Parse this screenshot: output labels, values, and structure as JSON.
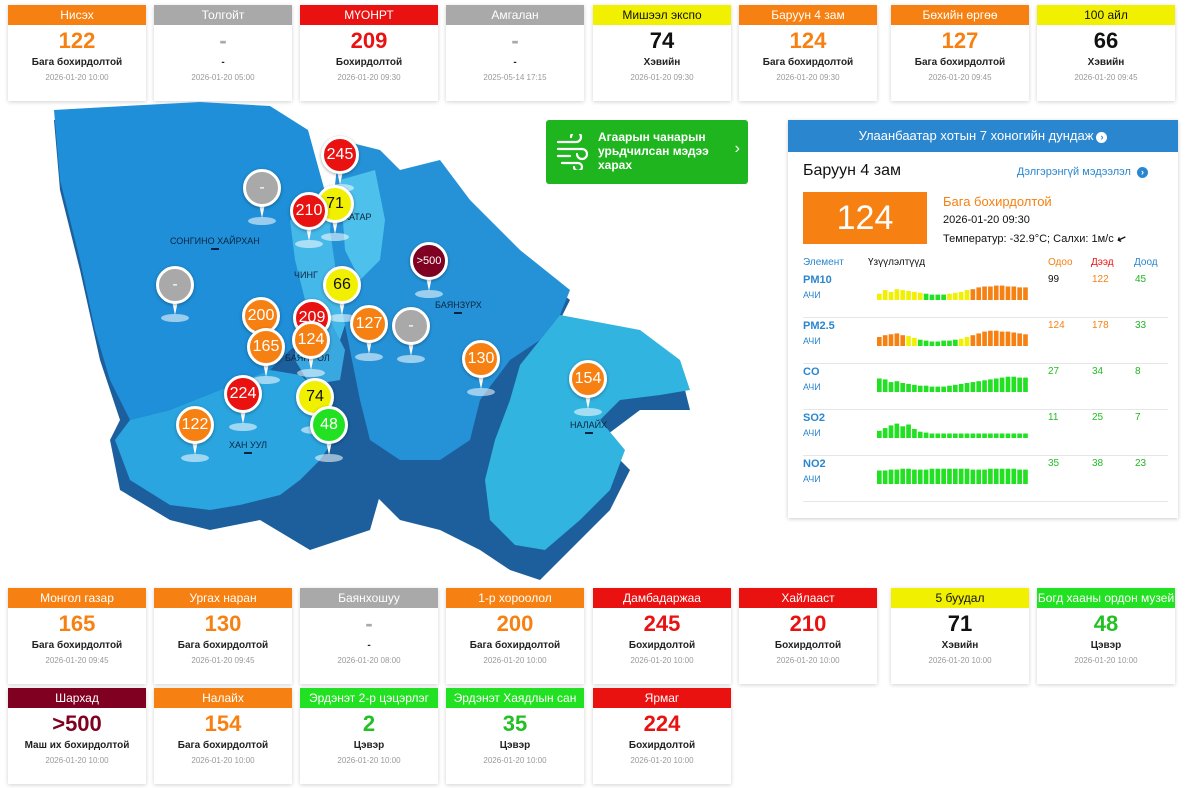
{
  "colors": {
    "good": "#22e022",
    "moderate": "#f0f000",
    "unhealthy_sensitive": "#f68112",
    "unhealthy": "#ea1111",
    "hazardous": "#7f0020",
    "nodata": "#a9a9a9",
    "accent": "#2a86cf",
    "forecast": "#1fb51f"
  },
  "top_stations": [
    {
      "name": "Нисэх",
      "value": "122",
      "level": "Бага бохирдолтой",
      "time": "2026-01-20 10:00",
      "color": "#f68112",
      "textColor": "#f68112"
    },
    {
      "name": "Толгойт",
      "value": "-",
      "level": "-",
      "time": "2026-01-20 05:00",
      "color": "#a9a9a9",
      "textColor": "#a9a9a9"
    },
    {
      "name": "МҮОНРТ",
      "value": "209",
      "level": "Бохирдолтой",
      "time": "2026-01-20 09:30",
      "color": "#ea1111",
      "textColor": "#ea1111"
    },
    {
      "name": "Амгалан",
      "value": "-",
      "level": "-",
      "time": "2025-05-14 17:15",
      "color": "#a9a9a9",
      "textColor": "#a9a9a9"
    },
    {
      "name": "Мишээл экспо",
      "value": "74",
      "level": "Хэвийн",
      "time": "2026-01-20 09:30",
      "color": "#f0f000",
      "textColor": "#111111"
    },
    {
      "name": "Баруун 4 зам",
      "value": "124",
      "level": "Бага бохирдолтой",
      "time": "2026-01-20 09:30",
      "color": "#f68112",
      "textColor": "#f68112"
    },
    {
      "name": "Бөхийн өргөө",
      "value": "127",
      "level": "Бага бохирдолтой",
      "time": "2026-01-20 09:45",
      "color": "#f68112",
      "textColor": "#f68112"
    },
    {
      "name": "100 айл",
      "value": "66",
      "level": "Хэвийн",
      "time": "2026-01-20 09:45",
      "color": "#f0f000",
      "textColor": "#111111"
    }
  ],
  "bottom_stations_row1": [
    {
      "name": "Монгол газар",
      "value": "165",
      "level": "Бага бохирдолтой",
      "time": "2026-01-20 09:45",
      "color": "#f68112",
      "textColor": "#f68112"
    },
    {
      "name": "Ургах наран",
      "value": "130",
      "level": "Бага бохирдолтой",
      "time": "2026-01-20 09:45",
      "color": "#f68112",
      "textColor": "#f68112"
    },
    {
      "name": "Баянхошуу",
      "value": "-",
      "level": "-",
      "time": "2026-01-20 08:00",
      "color": "#a9a9a9",
      "textColor": "#a9a9a9"
    },
    {
      "name": "1-р хороолол",
      "value": "200",
      "level": "Бага бохирдолтой",
      "time": "2026-01-20 10:00",
      "color": "#f68112",
      "textColor": "#f68112"
    },
    {
      "name": "Дамбадаржаа",
      "value": "245",
      "level": "Бохирдолтой",
      "time": "2026-01-20 10:00",
      "color": "#ea1111",
      "textColor": "#ea1111"
    },
    {
      "name": "Хайлааст",
      "value": "210",
      "level": "Бохирдолтой",
      "time": "2026-01-20 10:00",
      "color": "#ea1111",
      "textColor": "#ea1111"
    },
    {
      "name": "5 буудал",
      "value": "71",
      "level": "Хэвийн",
      "time": "2026-01-20 10:00",
      "color": "#f0f000",
      "textColor": "#111111"
    },
    {
      "name": "Богд хааны ордон музей",
      "value": "48",
      "level": "Цэвэр",
      "time": "2026-01-20 10:00",
      "color": "#22e022",
      "textColor": "#22c022"
    }
  ],
  "bottom_stations_row2": [
    {
      "name": "Шархад",
      "value": ">500",
      "level": "Маш их бохирдолтой",
      "time": "2026-01-20 10:00",
      "color": "#7f0020",
      "textColor": "#7f0020"
    },
    {
      "name": "Налайх",
      "value": "154",
      "level": "Бага бохирдолтой",
      "time": "2026-01-20 10:00",
      "color": "#f68112",
      "textColor": "#f68112"
    },
    {
      "name": "Эрдэнэт 2-р цэцэрлэг",
      "value": "2",
      "level": "Цэвэр",
      "time": "2026-01-20 10:00",
      "color": "#22e022",
      "textColor": "#22c022"
    },
    {
      "name": "Эрдэнэт Хаядлын сан",
      "value": "35",
      "level": "Цэвэр",
      "time": "2026-01-20 10:00",
      "color": "#22e022",
      "textColor": "#22c022"
    },
    {
      "name": "Ярмаг",
      "value": "224",
      "level": "Бохирдолтой",
      "time": "2026-01-20 10:00",
      "color": "#ea1111",
      "textColor": "#ea1111"
    }
  ],
  "map": {
    "districts": [
      "СОНГИНО ХАЙРХАН",
      "БАЯНЗҮРХ",
      "ХАН УУЛ",
      "НАЛАЙХ",
      "ЧИНГ",
      "БАЯН",
      "ОЛ",
      "ААТАР"
    ],
    "pins": [
      {
        "value": "245",
        "color": "#ea1111",
        "textColor": "#ffffff"
      },
      {
        "value": "71",
        "color": "#f0f000",
        "textColor": "#111111"
      },
      {
        "value": "210",
        "color": "#ea1111",
        "textColor": "#ffffff"
      },
      {
        "value": "-",
        "color": "#a9a9a9",
        "textColor": "#ffffff"
      },
      {
        "value": ">500",
        "color": "#7f0020",
        "textColor": "#ffffff"
      },
      {
        "value": "66",
        "color": "#f0f000",
        "textColor": "#111111"
      },
      {
        "value": "-",
        "color": "#a9a9a9",
        "textColor": "#ffffff"
      },
      {
        "value": "200",
        "color": "#f68112",
        "textColor": "#ffffff"
      },
      {
        "value": "209",
        "color": "#ea1111",
        "textColor": "#ffffff"
      },
      {
        "value": "127",
        "color": "#f68112",
        "textColor": "#ffffff"
      },
      {
        "value": "-",
        "color": "#a9a9a9",
        "textColor": "#ffffff"
      },
      {
        "value": "165",
        "color": "#f68112",
        "textColor": "#ffffff"
      },
      {
        "value": "124",
        "color": "#f68112",
        "textColor": "#ffffff"
      },
      {
        "value": "130",
        "color": "#f68112",
        "textColor": "#ffffff"
      },
      {
        "value": "154",
        "color": "#f68112",
        "textColor": "#ffffff"
      },
      {
        "value": "224",
        "color": "#ea1111",
        "textColor": "#ffffff"
      },
      {
        "value": "74",
        "color": "#f0f000",
        "textColor": "#111111"
      },
      {
        "value": "122",
        "color": "#f68112",
        "textColor": "#ffffff"
      },
      {
        "value": "48",
        "color": "#22e022",
        "textColor": "#ffffff"
      }
    ]
  },
  "forecast": {
    "label": "Агаарын чанарын урьдчилсан мэдээ харах",
    "icon": "wind-icon"
  },
  "panel": {
    "header": "Улаанбаатар хотын 7 хоногийн дундаж",
    "station": "Баруун 4 зам",
    "more": "Дэлгэрэнгүй мэдээлэл",
    "value": "124",
    "status": "Бага бохирдолтой",
    "time": "2026-01-20 09:30",
    "weather": "Температур: -32.9°C; Салхи: 1м/с",
    "columns": {
      "element": "Элемент",
      "indicator": "Үзүүлэлтүүд",
      "current": "Одоо",
      "max": "Дээд",
      "min": "Доод"
    },
    "pollutants": [
      {
        "name": "PM10",
        "unit": "АЧИ",
        "current": "99",
        "max": "122",
        "min": "45",
        "curColor": "#111111",
        "maxColor": "#f68112",
        "bars": [
          0.35,
          0.55,
          0.45,
          0.6,
          0.55,
          0.5,
          0.45,
          0.4,
          0.35,
          0.3,
          0.3,
          0.3,
          0.35,
          0.4,
          0.45,
          0.55,
          0.6,
          0.7,
          0.75,
          0.75,
          0.8,
          0.8,
          0.75,
          0.75,
          0.7,
          0.7
        ],
        "barColors": [
          "#f0f000",
          "#f0f000",
          "#f0f000",
          "#f0f000",
          "#f0f000",
          "#f0f000",
          "#f0f000",
          "#f0f000",
          "#22e022",
          "#22e022",
          "#22e022",
          "#22e022",
          "#f0f000",
          "#f0f000",
          "#f0f000",
          "#f0f000",
          "#f68112",
          "#f68112",
          "#f68112",
          "#f68112",
          "#f68112",
          "#f68112",
          "#f68112",
          "#f68112",
          "#f68112",
          "#f68112"
        ]
      },
      {
        "name": "PM2.5",
        "unit": "АЧИ",
        "current": "124",
        "max": "178",
        "min": "33",
        "curColor": "#f68112",
        "maxColor": "#f68112",
        "bars": [
          0.5,
          0.6,
          0.65,
          0.7,
          0.6,
          0.55,
          0.45,
          0.35,
          0.3,
          0.25,
          0.25,
          0.3,
          0.3,
          0.35,
          0.4,
          0.5,
          0.6,
          0.7,
          0.8,
          0.85,
          0.85,
          0.8,
          0.8,
          0.75,
          0.7,
          0.65
        ],
        "barColors": [
          "#f68112",
          "#f68112",
          "#f68112",
          "#f68112",
          "#f68112",
          "#f0f000",
          "#f0f000",
          "#22e022",
          "#22e022",
          "#22e022",
          "#22e022",
          "#22e022",
          "#22e022",
          "#22e022",
          "#f0f000",
          "#f0f000",
          "#f68112",
          "#f68112",
          "#f68112",
          "#f68112",
          "#f68112",
          "#f68112",
          "#f68112",
          "#f68112",
          "#f68112",
          "#f68112"
        ]
      },
      {
        "name": "CO",
        "unit": "АЧИ",
        "current": "27",
        "max": "34",
        "min": "8",
        "curColor": "#22c022",
        "maxColor": "#22c022",
        "bars": [
          0.75,
          0.7,
          0.55,
          0.6,
          0.5,
          0.45,
          0.4,
          0.35,
          0.35,
          0.3,
          0.3,
          0.3,
          0.35,
          0.4,
          0.45,
          0.5,
          0.55,
          0.6,
          0.65,
          0.7,
          0.75,
          0.8,
          0.85,
          0.85,
          0.8,
          0.8
        ],
        "barColors": [
          "#22e022"
        ]
      },
      {
        "name": "SO2",
        "unit": "АЧИ",
        "current": "11",
        "max": "25",
        "min": "7",
        "curColor": "#22c022",
        "maxColor": "#22c022",
        "bars": [
          0.4,
          0.55,
          0.7,
          0.8,
          0.65,
          0.75,
          0.5,
          0.35,
          0.3,
          0.25,
          0.25,
          0.25,
          0.25,
          0.25,
          0.25,
          0.25,
          0.25,
          0.25,
          0.25,
          0.25,
          0.25,
          0.25,
          0.25,
          0.25,
          0.25,
          0.25
        ],
        "barColors": [
          "#22e022"
        ]
      },
      {
        "name": "NO2",
        "unit": "АЧИ",
        "current": "35",
        "max": "38",
        "min": "23",
        "curColor": "#22c022",
        "maxColor": "#22c022",
        "bars": [
          0.75,
          0.75,
          0.8,
          0.8,
          0.85,
          0.85,
          0.8,
          0.8,
          0.8,
          0.85,
          0.85,
          0.85,
          0.85,
          0.85,
          0.85,
          0.85,
          0.8,
          0.8,
          0.8,
          0.85,
          0.85,
          0.85,
          0.85,
          0.85,
          0.8,
          0.8
        ],
        "barColors": [
          "#22e022"
        ]
      }
    ]
  }
}
